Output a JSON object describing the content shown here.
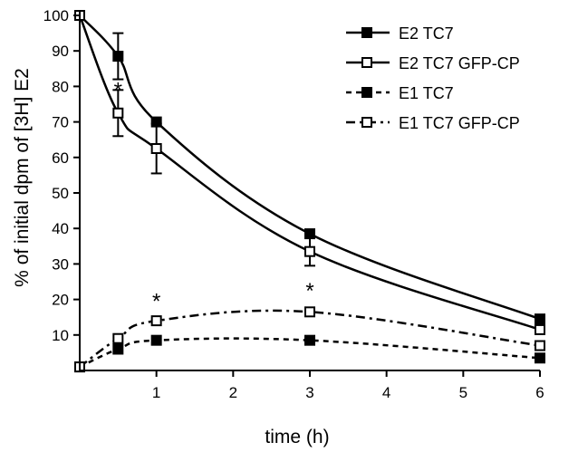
{
  "chart_data": {
    "type": "line",
    "xlabel": "time  (h)",
    "ylabel": "% of initial dpm of [3H] E2",
    "xlim": [
      0,
      6
    ],
    "ylim": [
      0,
      100
    ],
    "x_ticks": [
      "1",
      "2",
      "3",
      "4",
      "5",
      "6"
    ],
    "y_ticks": [
      "10",
      "20",
      "30",
      "40",
      "50",
      "60",
      "70",
      "80",
      "90",
      "100"
    ],
    "x_positions": {
      "1": 1,
      "2": 2,
      "3": 3,
      "4": 4,
      "5": 5,
      "6": 6
    },
    "series": [
      {
        "name": "E2 TC7",
        "marker": "filled-square",
        "line": "solid",
        "x": [
          0,
          0.5,
          1,
          3,
          6
        ],
        "y": [
          100,
          88.5,
          70,
          38.5,
          14.5
        ],
        "error": [
          0,
          6.5,
          0,
          0,
          0
        ]
      },
      {
        "name": "E2 TC7 GFP-CP",
        "marker": "open-square",
        "line": "solid",
        "x": [
          0,
          0.5,
          1,
          3,
          6
        ],
        "y": [
          100,
          72.5,
          62.5,
          33.5,
          11.5
        ],
        "error": [
          0,
          6.5,
          7,
          4,
          0
        ]
      },
      {
        "name": "E1 TC7",
        "marker": "filled-square",
        "line": "dashed",
        "x": [
          0,
          0.5,
          1,
          3,
          6
        ],
        "y": [
          1,
          6,
          8.5,
          8.5,
          3.5
        ],
        "error": [
          0,
          0,
          0,
          0,
          0
        ]
      },
      {
        "name": "E1 TC7 GFP-CP",
        "marker": "open-square",
        "line": "dash-dot",
        "x": [
          0,
          0.5,
          1,
          3,
          6
        ],
        "y": [
          1,
          9,
          14,
          16.5,
          7
        ],
        "error": [
          0,
          0,
          0,
          0,
          0
        ]
      }
    ],
    "annotations": [
      {
        "text": "*",
        "x": 1,
        "y": 19.5
      },
      {
        "text": "*",
        "x": 3,
        "y": 22.5
      },
      {
        "text": "*",
        "x": 0.5,
        "y": 79
      }
    ],
    "legend": "top-right",
    "grid": false
  }
}
